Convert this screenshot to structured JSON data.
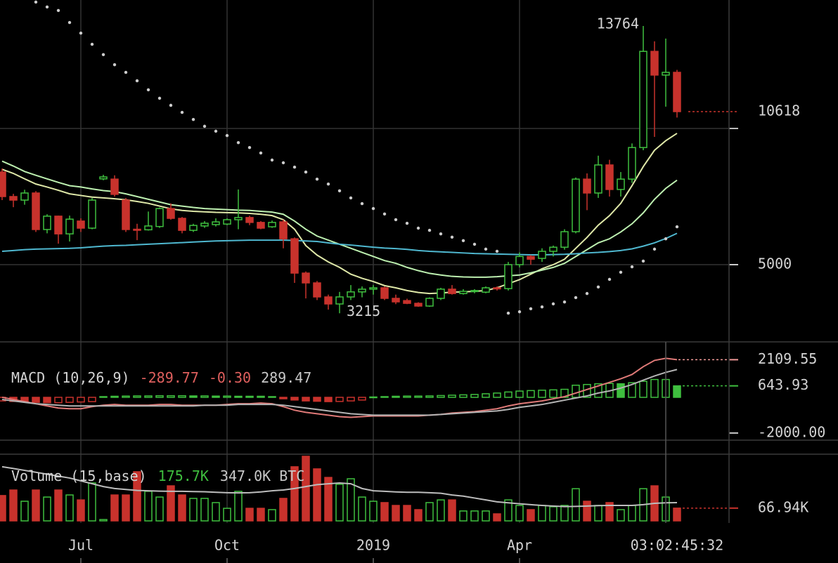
{
  "chart_data": [
    {
      "type": "candlestick",
      "categories": [
        null,
        null,
        null,
        null,
        null,
        null,
        null,
        "Jul",
        null,
        null,
        null,
        null,
        null,
        null,
        null,
        null,
        null,
        null,
        null,
        null,
        "Oct",
        null,
        null,
        null,
        null,
        null,
        null,
        null,
        null,
        null,
        null,
        null,
        null,
        "2019",
        null,
        null,
        null,
        null,
        null,
        null,
        null,
        null,
        null,
        null,
        null,
        null,
        "Apr",
        null,
        null,
        null,
        null,
        null,
        null,
        null,
        null,
        null,
        null,
        null,
        null,
        null,
        null
      ],
      "open": [
        8400,
        7500,
        7370,
        7630,
        6290,
        6780,
        6130,
        6600,
        6340,
        8150,
        8140,
        7370,
        6300,
        6280,
        6400,
        7060,
        6700,
        6260,
        6420,
        6470,
        6490,
        6650,
        6730,
        6550,
        6390,
        6570,
        5950,
        4690,
        4330,
        3815,
        3557,
        3815,
        4000,
        4100,
        4150,
        3763,
        3680,
        3580,
        3480,
        3763,
        4100,
        3940,
        4020,
        3990,
        4150,
        4120,
        5000,
        5300,
        5230,
        5490,
        5640,
        6210,
        8140,
        7630,
        8660,
        7760,
        8140,
        9300,
        12830,
        11960,
        12060
      ],
      "high": [
        8530,
        7600,
        7750,
        7700,
        6850,
        6800,
        6800,
        6700,
        7450,
        8300,
        8280,
        7450,
        6500,
        6950,
        7100,
        7250,
        6750,
        6500,
        6600,
        6700,
        6700,
        7760,
        6800,
        6600,
        6620,
        6650,
        6000,
        4750,
        4400,
        3900,
        4000,
        4250,
        4200,
        4250,
        4200,
        3900,
        3750,
        3620,
        3800,
        4150,
        4250,
        4100,
        4100,
        4200,
        4200,
        5100,
        5450,
        5350,
        5600,
        5700,
        6300,
        8200,
        8350,
        9000,
        8850,
        8400,
        9450,
        13764,
        13200,
        13300,
        12150
      ],
      "low": [
        7370,
        7110,
        7200,
        6200,
        6150,
        5770,
        5850,
        6200,
        6300,
        8100,
        7500,
        6200,
        5900,
        6250,
        6350,
        6650,
        6150,
        6200,
        6350,
        6400,
        6450,
        6300,
        6450,
        6300,
        6350,
        5600,
        4330,
        3760,
        3700,
        3350,
        3215,
        3700,
        3800,
        3900,
        3700,
        3550,
        3550,
        3450,
        3450,
        3700,
        3900,
        3900,
        3950,
        3950,
        4050,
        4050,
        4900,
        5000,
        5100,
        5300,
        5550,
        6150,
        7000,
        7450,
        7500,
        7500,
        8000,
        9200,
        9690,
        10800,
        10400
      ],
      "close": [
        7500,
        7370,
        7630,
        6290,
        6780,
        6130,
        6670,
        6340,
        7370,
        8220,
        7580,
        6290,
        6270,
        6420,
        7060,
        6700,
        6260,
        6440,
        6520,
        6570,
        6650,
        6730,
        6550,
        6340,
        6550,
        5950,
        4690,
        4330,
        3815,
        3557,
        3815,
        4000,
        4100,
        4150,
        3763,
        3634,
        3580,
        3480,
        3763,
        4100,
        3940,
        4020,
        4050,
        4150,
        4120,
        5000,
        5300,
        5200,
        5490,
        5640,
        6210,
        8140,
        7630,
        8660,
        7760,
        8140,
        9300,
        12830,
        11960,
        12060,
        10618
      ],
      "up_color": "#3fbf3f",
      "down_color": "#c8322c",
      "series": [
        {
          "color": "#dfe8a8",
          "style": "line",
          "values": [
            8500,
            8350,
            8150,
            7960,
            7850,
            7730,
            7600,
            7540,
            7480,
            7450,
            7420,
            7380,
            7320,
            7250,
            7150,
            7050,
            6990,
            6960,
            6940,
            6920,
            6910,
            6900,
            6880,
            6850,
            6800,
            6650,
            6300,
            5700,
            5350,
            5100,
            4900,
            4650,
            4500,
            4380,
            4230,
            4150,
            4050,
            3980,
            3940,
            3960,
            3990,
            4000,
            4020,
            4050,
            4150,
            4300,
            4450,
            4650,
            4850,
            5000,
            5200,
            5600,
            6000,
            6450,
            6800,
            7250,
            7900,
            8600,
            9200,
            9550,
            9820
          ]
        },
        {
          "color": "#bdf0b0",
          "style": "line",
          "values": [
            8800,
            8620,
            8420,
            8280,
            8150,
            8020,
            7900,
            7850,
            7780,
            7720,
            7680,
            7600,
            7500,
            7400,
            7300,
            7200,
            7150,
            7100,
            7060,
            7040,
            7020,
            7000,
            6990,
            6960,
            6930,
            6850,
            6600,
            6300,
            6050,
            5900,
            5750,
            5600,
            5450,
            5300,
            5150,
            5050,
            4900,
            4780,
            4680,
            4620,
            4570,
            4550,
            4540,
            4540,
            4560,
            4590,
            4620,
            4700,
            4800,
            4900,
            5050,
            5300,
            5550,
            5800,
            5950,
            6200,
            6500,
            6900,
            7400,
            7800,
            8100
          ]
        },
        {
          "color": "#4fb8d0",
          "style": "line",
          "values": [
            5490,
            5520,
            5550,
            5570,
            5580,
            5590,
            5600,
            5620,
            5650,
            5680,
            5700,
            5710,
            5730,
            5750,
            5770,
            5790,
            5810,
            5830,
            5850,
            5870,
            5880,
            5890,
            5900,
            5900,
            5900,
            5900,
            5890,
            5870,
            5850,
            5800,
            5750,
            5720,
            5680,
            5640,
            5610,
            5590,
            5560,
            5520,
            5490,
            5470,
            5450,
            5430,
            5410,
            5400,
            5390,
            5380,
            5370,
            5360,
            5360,
            5370,
            5380,
            5400,
            5430,
            5450,
            5480,
            5520,
            5580,
            5680,
            5800,
            5960,
            6150
          ]
        },
        {
          "color": "#cccccc",
          "style": "dots",
          "values": [
            null,
            null,
            null,
            14640,
            14460,
            14330,
            13890,
            13500,
            13090,
            12710,
            12340,
            12060,
            11750,
            11420,
            11110,
            10850,
            10590,
            10330,
            10080,
            9900,
            9740,
            9480,
            9300,
            9100,
            8840,
            8740,
            8580,
            8400,
            8140,
            7960,
            7710,
            7450,
            7240,
            7060,
            6860,
            6650,
            6520,
            6340,
            6260,
            6130,
            6010,
            5880,
            5750,
            5570,
            5490,
            3220,
            3270,
            3380,
            3450,
            3560,
            3630,
            3790,
            3940,
            4180,
            4460,
            4720,
            4920,
            5130,
            5570,
            5950,
            6390
          ]
        }
      ],
      "ylim": [
        2165,
        14716
      ],
      "yticks": [
        5000
      ],
      "ygrid": [
        5000,
        10000
      ],
      "last_price": 10618,
      "max_label": 13764,
      "min_label": 3215,
      "countdown": "03:02:45:32"
    },
    {
      "type": "macd",
      "title": "MACD (10,26,9)",
      "readouts": [
        {
          "text": "-289.77",
          "color": "#e0605e"
        },
        {
          "text": "-0.30",
          "color": "#e0605e"
        },
        {
          "text": "289.47",
          "color": "#c8c8c8"
        }
      ],
      "histogram": [
        -200,
        -230,
        -260,
        -280,
        -300,
        -300,
        -280,
        -260,
        -240,
        40,
        60,
        70,
        80,
        80,
        90,
        90,
        90,
        80,
        80,
        70,
        70,
        60,
        60,
        60,
        40,
        -80,
        -150,
        -200,
        -220,
        -240,
        -230,
        -200,
        -150,
        20,
        40,
        60,
        70,
        70,
        80,
        100,
        120,
        140,
        160,
        200,
        240,
        300,
        350,
        380,
        400,
        420,
        450,
        680,
        720,
        760,
        780,
        760,
        820,
        900,
        1000,
        1000,
        643.93
      ],
      "series": [
        {
          "color": "#e07a78",
          "values": [
            0,
            -120,
            -240,
            -360,
            -480,
            -600,
            -640,
            -640,
            -520,
            -440,
            -400,
            -440,
            -440,
            -440,
            -400,
            -400,
            -440,
            -440,
            -440,
            -440,
            -400,
            -360,
            -360,
            -320,
            -360,
            -520,
            -720,
            -840,
            -920,
            -1000,
            -1080,
            -1120,
            -1080,
            -1040,
            -1040,
            -1040,
            -1040,
            -1040,
            -1000,
            -960,
            -880,
            -840,
            -800,
            -720,
            -640,
            -480,
            -360,
            -280,
            -200,
            -80,
            40,
            240,
            440,
            640,
            840,
            1040,
            1280,
            1720,
            2070,
            2190,
            2109.55
          ]
        },
        {
          "color": "#b4b4b4",
          "values": [
            -120,
            -200,
            -280,
            -360,
            -400,
            -440,
            -480,
            -480,
            -480,
            -480,
            -480,
            -480,
            -480,
            -480,
            -480,
            -480,
            -480,
            -480,
            -440,
            -440,
            -440,
            -400,
            -400,
            -400,
            -400,
            -440,
            -520,
            -600,
            -680,
            -760,
            -840,
            -920,
            -960,
            -1000,
            -1000,
            -1000,
            -1000,
            -1000,
            -1000,
            -960,
            -920,
            -880,
            -840,
            -800,
            -760,
            -680,
            -560,
            -480,
            -400,
            -280,
            -160,
            -40,
            80,
            240,
            360,
            520,
            720,
            960,
            1200,
            1400,
            1560
          ]
        }
      ],
      "ylim": [
        -2400,
        3070
      ],
      "yticks": [
        2109.55,
        643.93,
        {
          "value": -2000,
          "label": "-2000.00"
        }
      ],
      "ytick_colors": [
        "#f09a98",
        "#3fbf3f",
        "#cccccc"
      ]
    },
    {
      "type": "volume",
      "title": "Volume (15,base)",
      "readouts": [
        {
          "text": "175.7K",
          "color": "#3fbf3f"
        },
        {
          "text": "347.0K BTC",
          "color": "#c8c8c8"
        }
      ],
      "values": [
        133000,
        162000,
        103000,
        162000,
        125000,
        162000,
        136000,
        110000,
        199000,
        7000,
        136000,
        136000,
        258000,
        155000,
        125000,
        184000,
        136000,
        118000,
        118000,
        96000,
        66000,
        155000,
        66000,
        66000,
        59000,
        118000,
        284000,
        339000,
        273000,
        228000,
        192000,
        221000,
        125000,
        103000,
        96000,
        81000,
        81000,
        59000,
        96000,
        110000,
        110000,
        52000,
        52000,
        52000,
        37000,
        110000,
        81000,
        59000,
        81000,
        74000,
        81000,
        169000,
        103000,
        81000,
        96000,
        59000,
        81000,
        169000,
        184000,
        125000,
        66940
      ],
      "series": [
        {
          "color": "#bdbdbd",
          "values": [
            284000,
            275000,
            265000,
            255000,
            245000,
            235000,
            225000,
            210000,
            195000,
            180000,
            170000,
            165000,
            160000,
            158000,
            156000,
            155000,
            155000,
            154000,
            153000,
            150000,
            148000,
            147000,
            148000,
            152000,
            158000,
            162000,
            170000,
            180000,
            190000,
            195000,
            199000,
            195000,
            170000,
            158000,
            155000,
            152000,
            150000,
            150000,
            148000,
            145000,
            136000,
            130000,
            120000,
            110000,
            100000,
            95000,
            90000,
            85000,
            81000,
            78000,
            75000,
            76000,
            78000,
            80000,
            81000,
            81000,
            81000,
            85000,
            92000,
            95000,
            96000
          ]
        }
      ],
      "ylim": [
        0,
        350000
      ],
      "yticks": [
        {
          "value": 66940,
          "label": "66.94K"
        }
      ],
      "ytick_colors": [
        "#c8322c"
      ]
    }
  ]
}
